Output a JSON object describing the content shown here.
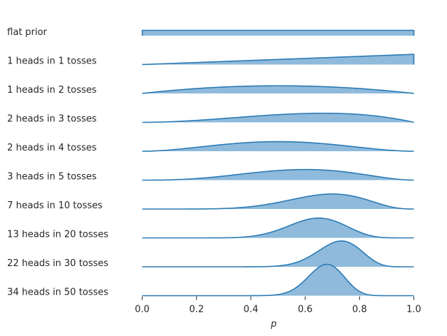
{
  "chart_data": {
    "type": "area",
    "title": "",
    "xlabel": "p",
    "ylabel": "",
    "xlim": [
      0.0,
      1.0
    ],
    "xticks": [
      "0.0",
      "0.2",
      "0.4",
      "0.6",
      "0.8",
      "1.0"
    ],
    "grid": false,
    "legend": "none",
    "colors": {
      "line": "#2c7bb6",
      "fill": "#8fbadb"
    },
    "series": [
      {
        "label": "flat prior",
        "heads": 0,
        "tosses": 0
      },
      {
        "label": "1 heads in 1 tosses",
        "heads": 1,
        "tosses": 1
      },
      {
        "label": "1 heads in 2 tosses",
        "heads": 1,
        "tosses": 2
      },
      {
        "label": "2 heads in 3 tosses",
        "heads": 2,
        "tosses": 3
      },
      {
        "label": "2 heads in 4 tosses",
        "heads": 2,
        "tosses": 4
      },
      {
        "label": "3 heads in 5 tosses",
        "heads": 3,
        "tosses": 5
      },
      {
        "label": "7 heads in 10 tosses",
        "heads": 7,
        "tosses": 10
      },
      {
        "label": "13 heads in 20 tosses",
        "heads": 13,
        "tosses": 20
      },
      {
        "label": "22 heads in 30 tosses",
        "heads": 22,
        "tosses": 30
      },
      {
        "label": "34 heads in 50 tosses",
        "heads": 34,
        "tosses": 50
      }
    ]
  }
}
